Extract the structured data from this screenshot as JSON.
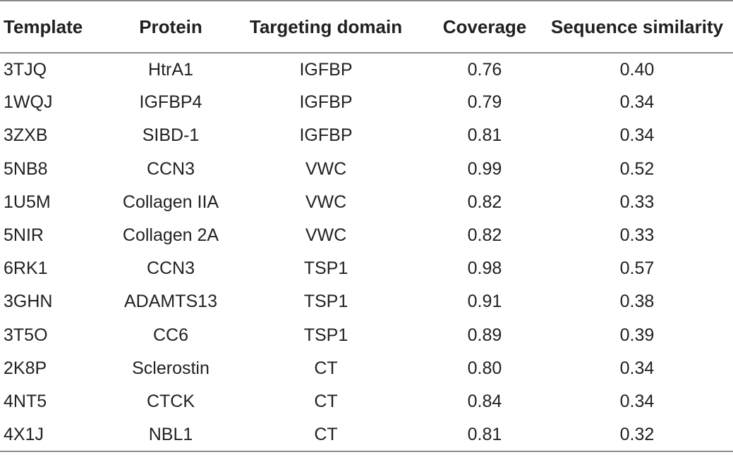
{
  "table": {
    "headers": [
      "Template",
      "Protein",
      "Targeting domain",
      "Coverage",
      "Sequence similarity"
    ],
    "rows": [
      [
        "3TJQ",
        "HtrA1",
        "IGFBP",
        "0.76",
        "0.40"
      ],
      [
        "1WQJ",
        "IGFBP4",
        "IGFBP",
        "0.79",
        "0.34"
      ],
      [
        "3ZXB",
        "SIBD-1",
        "IGFBP",
        "0.81",
        "0.34"
      ],
      [
        "5NB8",
        "CCN3",
        "VWC",
        "0.99",
        "0.52"
      ],
      [
        "1U5M",
        "Collagen IIA",
        "VWC",
        "0.82",
        "0.33"
      ],
      [
        "5NIR",
        "Collagen 2A",
        "VWC",
        "0.82",
        "0.33"
      ],
      [
        "6RK1",
        "CCN3",
        "TSP1",
        "0.98",
        "0.57"
      ],
      [
        "3GHN",
        "ADAMTS13",
        "TSP1",
        "0.91",
        "0.38"
      ],
      [
        "3T5O",
        "CC6",
        "TSP1",
        "0.89",
        "0.39"
      ],
      [
        "2K8P",
        "Sclerostin",
        "CT",
        "0.80",
        "0.34"
      ],
      [
        "4NT5",
        "CTCK",
        "CT",
        "0.84",
        "0.34"
      ],
      [
        "4X1J",
        "NBL1",
        "CT",
        "0.81",
        "0.32"
      ]
    ]
  }
}
